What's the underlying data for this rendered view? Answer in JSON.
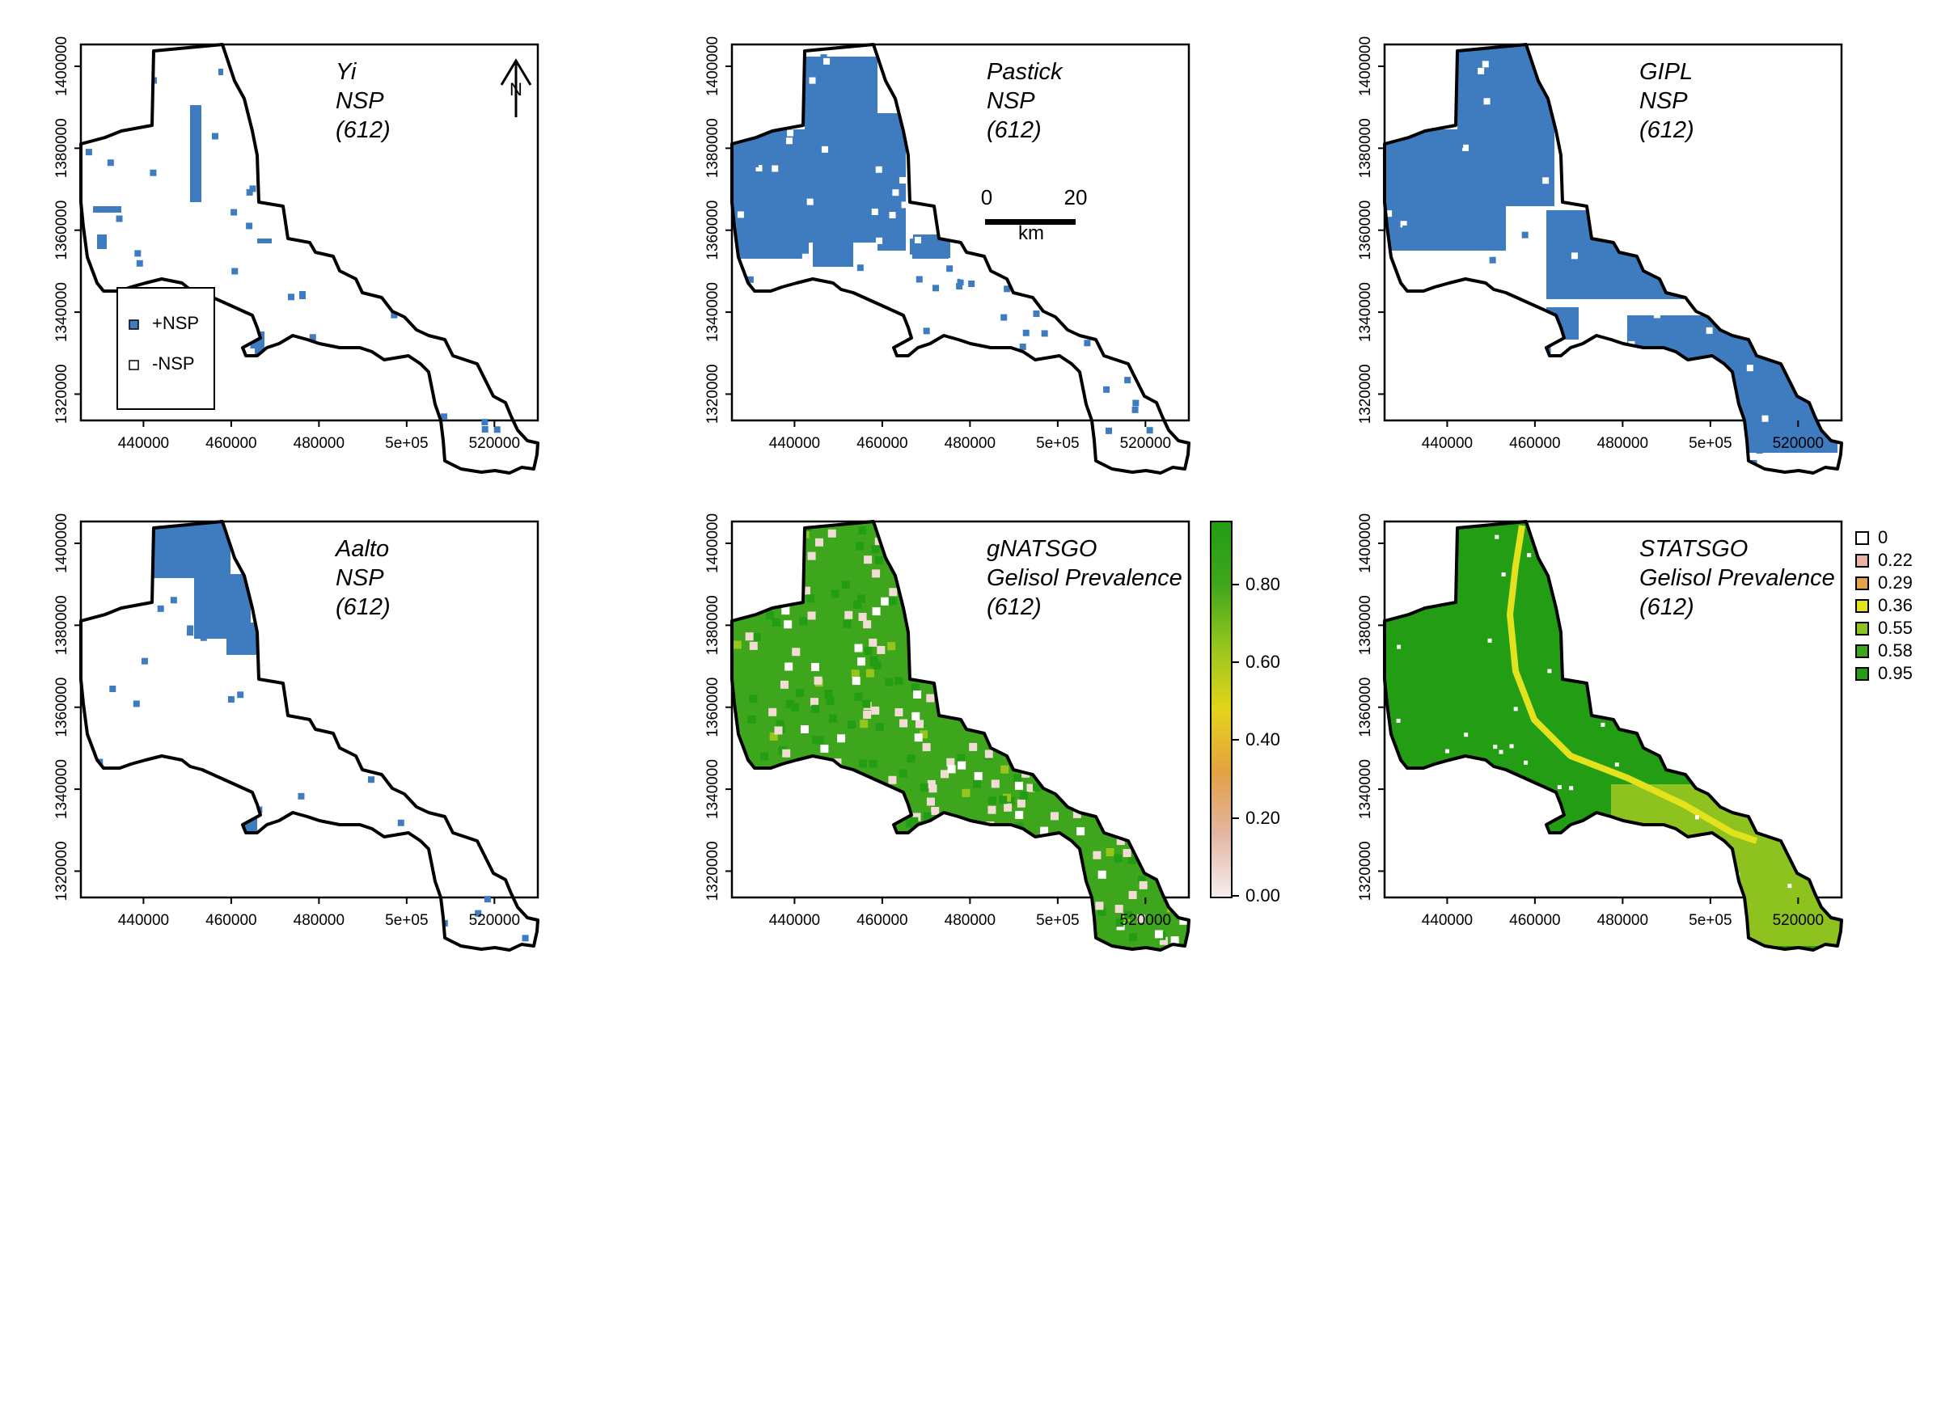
{
  "x_ticks": [
    "440000",
    "460000",
    "480000",
    "5e+05",
    "520000"
  ],
  "y_ticks": [
    "1320000",
    "1340000",
    "1360000",
    "1380000",
    "1400000"
  ],
  "panels": [
    {
      "title": [
        "Yi",
        "NSP",
        "(612)"
      ],
      "fill": "binary"
    },
    {
      "title": [
        "Pastick",
        "NSP",
        "(612)"
      ],
      "fill": "binary"
    },
    {
      "title": [
        "GIPL",
        "NSP",
        "(612)"
      ],
      "fill": "binary"
    },
    {
      "title": [
        "Aalto",
        "NSP",
        "(612)"
      ],
      "fill": "binary"
    },
    {
      "title": [
        "gNATSGO",
        "Gelisol Prevalence",
        "(612)"
      ],
      "fill": "continuous"
    },
    {
      "title": [
        "STATSGO",
        "Gelisol Prevalence",
        "(612)"
      ],
      "fill": "classes"
    }
  ],
  "north_arrow": "N",
  "scale_bar": {
    "start": "0",
    "end": "20",
    "unit": "km"
  },
  "nsp_legend": [
    {
      "label": "+NSP",
      "color": "#3f7cbf"
    },
    {
      "label": "-NSP",
      "color": "#ffffff"
    }
  ],
  "colorbar": {
    "labels": [
      "0.80",
      "0.60",
      "0.40",
      "0.20",
      "0.00"
    ],
    "stops": [
      "#f6eeee",
      "#e2b6a4",
      "#e4a043",
      "#e4d419",
      "#96c61e",
      "#3ea61c",
      "#239d14"
    ]
  },
  "class_legend": [
    {
      "label": "0",
      "color": "#ffffff"
    },
    {
      "label": "0.22",
      "color": "#ebb2a6"
    },
    {
      "label": "0.29",
      "color": "#e6a24c"
    },
    {
      "label": "0.36",
      "color": "#e3e21c"
    },
    {
      "label": "0.55",
      "color": "#8dc21f"
    },
    {
      "label": "0.58",
      "color": "#3ea61c"
    },
    {
      "label": "0.95",
      "color": "#239d14"
    }
  ],
  "colors": {
    "nsp_fill": "#3f7cbf",
    "boundary": "#000000"
  }
}
